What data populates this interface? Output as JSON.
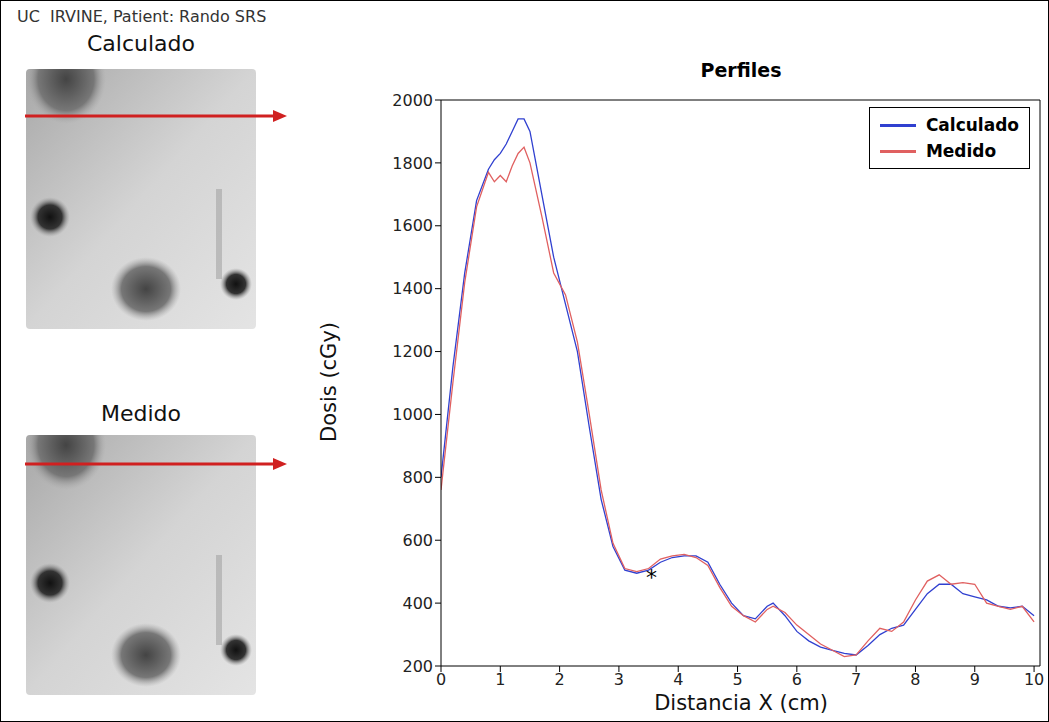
{
  "header": {
    "title": "UC  IRVINE, Patient: Rando SRS"
  },
  "images": [
    {
      "label": "Calculado"
    },
    {
      "label": "Medido"
    }
  ],
  "chart_data": {
    "type": "line",
    "title": "Perfiles",
    "x_label": "Distancia X (cm)",
    "y_label": "Dosis (cGy)",
    "x": [
      0,
      0.2,
      0.4,
      0.6,
      0.8,
      0.9,
      1.0,
      1.1,
      1.2,
      1.3,
      1.4,
      1.5,
      1.7,
      1.9,
      2.1,
      2.3,
      2.5,
      2.7,
      2.9,
      3.1,
      3.3,
      3.5,
      3.7,
      3.9,
      4.1,
      4.3,
      4.5,
      4.7,
      4.9,
      5.1,
      5.3,
      5.5,
      5.6,
      5.8,
      6.0,
      6.2,
      6.4,
      6.6,
      6.8,
      7.0,
      7.2,
      7.4,
      7.6,
      7.8,
      8.0,
      8.2,
      8.4,
      8.6,
      8.8,
      9.0,
      9.2,
      9.4,
      9.6,
      9.8,
      10.0
    ],
    "series": [
      {
        "name": "Calculado",
        "color": "#3040d0",
        "values": [
          800,
          1150,
          1450,
          1680,
          1780,
          1810,
          1830,
          1860,
          1900,
          1940,
          1940,
          1900,
          1700,
          1500,
          1350,
          1200,
          960,
          730,
          580,
          505,
          495,
          505,
          530,
          545,
          550,
          550,
          530,
          460,
          400,
          360,
          350,
          390,
          400,
          360,
          310,
          280,
          260,
          250,
          240,
          235,
          265,
          300,
          320,
          330,
          380,
          430,
          460,
          460,
          430,
          420,
          410,
          390,
          385,
          390,
          360
        ]
      },
      {
        "name": "Medido",
        "color": "#e06060",
        "values": [
          760,
          1100,
          1420,
          1660,
          1770,
          1740,
          1760,
          1740,
          1790,
          1830,
          1850,
          1800,
          1630,
          1450,
          1380,
          1230,
          1000,
          760,
          590,
          510,
          500,
          510,
          540,
          550,
          555,
          545,
          520,
          450,
          390,
          360,
          340,
          380,
          390,
          370,
          330,
          300,
          270,
          250,
          230,
          235,
          280,
          320,
          310,
          340,
          410,
          470,
          490,
          460,
          465,
          460,
          400,
          390,
          380,
          390,
          340
        ]
      }
    ],
    "xlim": [
      0,
      10.1
    ],
    "xticks": [
      0,
      1,
      2,
      3,
      4,
      5,
      6,
      7,
      8,
      9,
      10
    ],
    "ylim": [
      200,
      2000
    ],
    "yticks": [
      200,
      400,
      600,
      800,
      1000,
      1200,
      1400,
      1600,
      1800,
      2000
    ],
    "legend": "upper right",
    "grid": false,
    "annotations": [
      {
        "text": "*",
        "x": 3.55,
        "y": 505
      }
    ]
  }
}
